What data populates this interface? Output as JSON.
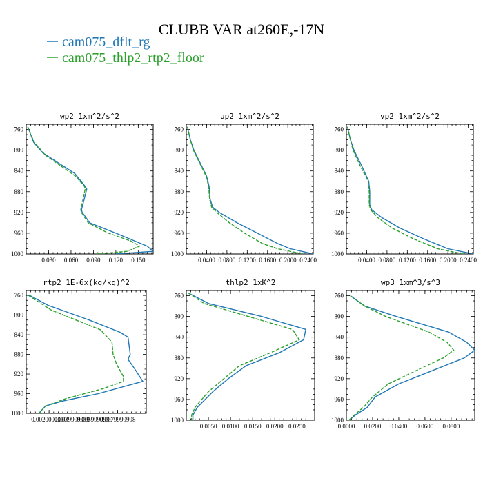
{
  "figure": {
    "title": "CLUBB VAR at260E,-17N",
    "legend": [
      {
        "name": "cam075_dflt_rg",
        "color": "#1f77b4",
        "dash": ""
      },
      {
        "name": "cam075_thlp2_rtp2_floor",
        "color": "#2ca02c",
        "dash": "5,2"
      }
    ]
  },
  "chart_data": [
    {
      "type": "line",
      "title": "wp2  1xm^2/s^2",
      "xlim": [
        0,
        0.17
      ],
      "ylim": [
        1000,
        750
      ],
      "xticks": [
        0.03,
        0.06,
        0.09,
        0.12,
        0.15
      ],
      "xtick_labels": [
        "0.030",
        "0.060",
        "0.090",
        "0.120",
        "0.150"
      ],
      "yticks": [
        760,
        800,
        840,
        880,
        920,
        960,
        1000
      ],
      "ytick_labels": [
        "760",
        "800",
        "840",
        "880",
        "920",
        "960",
        "1000"
      ],
      "series": [
        {
          "name": "cam075_dflt_rg",
          "y": [
            755,
            770,
            785,
            805,
            845,
            870,
            875,
            915,
            920,
            940,
            960,
            985,
            995,
            1000
          ],
          "x": [
            0.002,
            0.006,
            0.01,
            0.022,
            0.065,
            0.079,
            0.081,
            0.074,
            0.075,
            0.085,
            0.12,
            0.162,
            0.17,
            0.12
          ]
        },
        {
          "name": "cam075_thlp2_rtp2_floor",
          "y": [
            755,
            770,
            785,
            810,
            850,
            870,
            875,
            915,
            920,
            940,
            960,
            975,
            985,
            995,
            1000
          ],
          "x": [
            0.002,
            0.006,
            0.011,
            0.026,
            0.066,
            0.078,
            0.079,
            0.073,
            0.074,
            0.083,
            0.11,
            0.14,
            0.152,
            0.135,
            0.095
          ]
        }
      ]
    },
    {
      "type": "line",
      "title": "up2  1xm^2/s^2",
      "xlim": [
        0,
        0.25
      ],
      "ylim": [
        1000,
        750
      ],
      "xticks": [
        0.04,
        0.08,
        0.12,
        0.16,
        0.2,
        0.24
      ],
      "xtick_labels": [
        "0.0400",
        "0.0800",
        "0.1200",
        "0.1600",
        "0.2000",
        "0.2400"
      ],
      "yticks": [
        760,
        800,
        840,
        880,
        920,
        960,
        1000
      ],
      "ytick_labels": [
        "760",
        "800",
        "840",
        "880",
        "920",
        "960",
        "1000"
      ],
      "series": [
        {
          "name": "cam075_dflt_rg",
          "y": [
            755,
            780,
            800,
            830,
            850,
            870,
            895,
            910,
            920,
            940,
            960,
            980,
            990,
            1000
          ],
          "x": [
            0.002,
            0.008,
            0.015,
            0.03,
            0.04,
            0.045,
            0.047,
            0.052,
            0.065,
            0.1,
            0.14,
            0.18,
            0.205,
            0.25
          ]
        },
        {
          "name": "cam075_thlp2_rtp2_floor",
          "y": [
            755,
            780,
            800,
            830,
            850,
            870,
            895,
            910,
            920,
            940,
            960,
            980,
            990,
            1000
          ],
          "x": [
            0.002,
            0.008,
            0.014,
            0.029,
            0.039,
            0.044,
            0.046,
            0.05,
            0.06,
            0.085,
            0.115,
            0.15,
            0.18,
            0.23
          ]
        }
      ]
    },
    {
      "type": "line",
      "title": "vp2  1xm^2/s^2",
      "xlim": [
        0,
        0.25
      ],
      "ylim": [
        1000,
        750
      ],
      "xticks": [
        0.04,
        0.08,
        0.12,
        0.16,
        0.2,
        0.24
      ],
      "xtick_labels": [
        "0.0400",
        "0.0800",
        "0.1200",
        "0.1600",
        "0.2000",
        "0.2400"
      ],
      "yticks": [
        760,
        800,
        840,
        880,
        920,
        960,
        1000
      ],
      "ytick_labels": [
        "760",
        "800",
        "840",
        "880",
        "920",
        "960",
        "1000"
      ],
      "series": [
        {
          "name": "cam075_dflt_rg",
          "y": [
            755,
            780,
            800,
            830,
            860,
            880,
            905,
            915,
            930,
            950,
            970,
            990,
            1000
          ],
          "x": [
            0.002,
            0.008,
            0.015,
            0.03,
            0.044,
            0.046,
            0.046,
            0.05,
            0.07,
            0.105,
            0.15,
            0.2,
            0.25
          ]
        },
        {
          "name": "cam075_thlp2_rtp2_floor",
          "y": [
            755,
            780,
            800,
            830,
            860,
            880,
            905,
            915,
            930,
            950,
            970,
            990,
            1000
          ],
          "x": [
            0.002,
            0.008,
            0.013,
            0.027,
            0.043,
            0.045,
            0.045,
            0.048,
            0.062,
            0.09,
            0.13,
            0.18,
            0.23
          ]
        }
      ]
    },
    {
      "type": "line",
      "title": "rtp2  1E-6x(kg/kg)^2",
      "xlim": [
        0,
        0.0105
      ],
      "ylim": [
        1000,
        750
      ],
      "xticks": [
        0.002,
        0.004,
        0.006,
        0.008
      ],
      "xtick_labels": [
        "0.0020000000",
        "0.0039999999",
        "0.0059999999",
        "0.0079999998"
      ],
      "yticks": [
        760,
        800,
        840,
        880,
        920,
        960,
        1000
      ],
      "ytick_labels": [
        "760",
        "800",
        "840",
        "880",
        "920",
        "960",
        "1000"
      ],
      "series": [
        {
          "name": "cam075_dflt_rg",
          "y": [
            760,
            780,
            810,
            835,
            845,
            880,
            890,
            910,
            935,
            960,
            975,
            985,
            995,
            1000
          ],
          "x": [
            0.0003,
            0.0019,
            0.0055,
            0.0082,
            0.0089,
            0.0091,
            0.0089,
            0.0095,
            0.0102,
            0.0063,
            0.0032,
            0.0017,
            0.0013,
            0.0012
          ]
        },
        {
          "name": "cam075_thlp2_rtp2_floor",
          "y": [
            760,
            790,
            830,
            855,
            880,
            900,
            925,
            935,
            950,
            970,
            985,
            1000
          ],
          "x": [
            0.0002,
            0.0022,
            0.0065,
            0.0075,
            0.0076,
            0.0079,
            0.0085,
            0.0085,
            0.0067,
            0.0035,
            0.0017,
            0.0011
          ]
        }
      ]
    },
    {
      "type": "line",
      "title": "thlp2  1xK^2",
      "xlim": [
        0,
        0.029
      ],
      "ylim": [
        1000,
        750
      ],
      "xticks": [
        0.005,
        0.01,
        0.015,
        0.02,
        0.025
      ],
      "xtick_labels": [
        "0.0050",
        "0.0100",
        "0.0150",
        "0.0200",
        "0.0250"
      ],
      "yticks": [
        760,
        800,
        840,
        880,
        920,
        960,
        1000
      ],
      "ytick_labels": [
        "760",
        "800",
        "840",
        "880",
        "920",
        "960",
        "1000"
      ],
      "series": [
        {
          "name": "cam075_dflt_rg",
          "y": [
            755,
            775,
            800,
            825,
            845,
            870,
            895,
            920,
            945,
            975,
            990,
            1000
          ],
          "x": [
            0.0005,
            0.005,
            0.017,
            0.027,
            0.0265,
            0.021,
            0.0135,
            0.0095,
            0.006,
            0.0025,
            0.0015,
            0.0015
          ]
        },
        {
          "name": "cam075_thlp2_rtp2_floor",
          "y": [
            755,
            775,
            800,
            825,
            845,
            870,
            895,
            920,
            945,
            975,
            990,
            1000
          ],
          "x": [
            0.0005,
            0.004,
            0.014,
            0.024,
            0.0255,
            0.019,
            0.012,
            0.0085,
            0.005,
            0.002,
            0.0012,
            0.0012
          ]
        }
      ]
    },
    {
      "type": "line",
      "title": "wp3  1xm^3/s^3",
      "xlim": [
        0,
        0.098
      ],
      "ylim": [
        1000,
        750
      ],
      "xticks": [
        0,
        0.02,
        0.04,
        0.06,
        0.08
      ],
      "xtick_labels": [
        "0.0000",
        "0.0200",
        "0.0400",
        "0.0600",
        "0.0800"
      ],
      "yticks": [
        760,
        800,
        840,
        880,
        920,
        960,
        1000
      ],
      "ytick_labels": [
        "760",
        "800",
        "840",
        "880",
        "920",
        "960",
        "1000"
      ],
      "series": [
        {
          "name": "cam075_dflt_rg",
          "y": [
            760,
            780,
            800,
            830,
            850,
            865,
            880,
            900,
            930,
            955,
            975,
            990,
            1000
          ],
          "x": [
            0.003,
            0.014,
            0.038,
            0.078,
            0.092,
            0.098,
            0.09,
            0.07,
            0.04,
            0.022,
            0.016,
            0.007,
            0.002
          ]
        },
        {
          "name": "cam075_thlp2_rtp2_floor",
          "y": [
            760,
            780,
            800,
            830,
            850,
            865,
            880,
            900,
            930,
            955,
            975,
            990,
            1000
          ],
          "x": [
            0.003,
            0.014,
            0.03,
            0.063,
            0.077,
            0.082,
            0.074,
            0.057,
            0.032,
            0.02,
            0.013,
            0.006,
            0.002
          ]
        }
      ]
    }
  ]
}
